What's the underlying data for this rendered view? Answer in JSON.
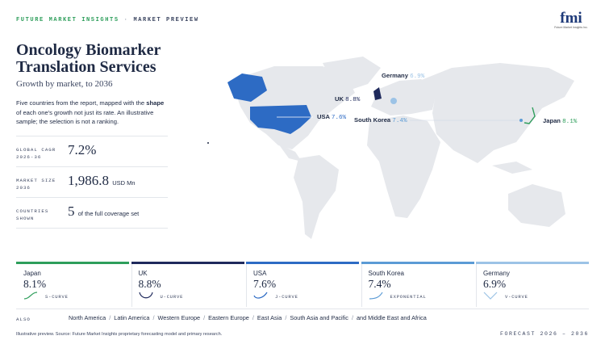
{
  "header": {
    "brand": "FUTURE MARKET INSIGHTS",
    "separator": "·",
    "section": "MARKET PREVIEW",
    "logo": "fmi",
    "logo_caption": "Future Market Insights Inc."
  },
  "title": "Oncology Biomarker Translation Services",
  "subtitle": "Growth by market, to 2036",
  "description": {
    "before": "Five countries from the report, mapped with the",
    "emphasis": "shape",
    "after": "of each one's growth not just its rate. An illustrative sample; the selection is not a ranking."
  },
  "stats": [
    {
      "label": "GLOBAL CAGR 2026-36",
      "value": "7.2%"
    },
    {
      "label": "MARKET SIZE 2036",
      "value": "1,986.8",
      "unit": "USD Mn"
    },
    {
      "label": "COUNTRIES SHOWN",
      "value": "5",
      "unit": "of the full coverage set"
    }
  ],
  "cards": [
    {
      "country": "Japan",
      "value": "8.1%",
      "shape": "S-CURVE",
      "color": "#2e9e5b"
    },
    {
      "country": "UK",
      "value": "8.8%",
      "shape": "U-CURVE",
      "color": "#1f2a5c"
    },
    {
      "country": "USA",
      "value": "7.6%",
      "shape": "J-CURVE",
      "color": "#2d6bc4"
    },
    {
      "country": "South Korea",
      "value": "7.4%",
      "shape": "EXPONENTIAL",
      "color": "#5b9bd5"
    },
    {
      "country": "Germany",
      "value": "6.9%",
      "shape": "V-CURVE",
      "color": "#9cc3e6"
    }
  ],
  "also": {
    "label": "ALSO",
    "separator": "/",
    "regions": [
      "North America",
      "Latin America",
      "Western Europe",
      "Eastern Europe",
      "East Asia",
      "South Asia and Pacific",
      "and Middle East and Africa"
    ]
  },
  "footer": {
    "note": "Illustrative preview. Source: Future Market Insights proprietary forecasting model and primary research.",
    "forecast": "FORECAST 2026 – 2036"
  }
}
